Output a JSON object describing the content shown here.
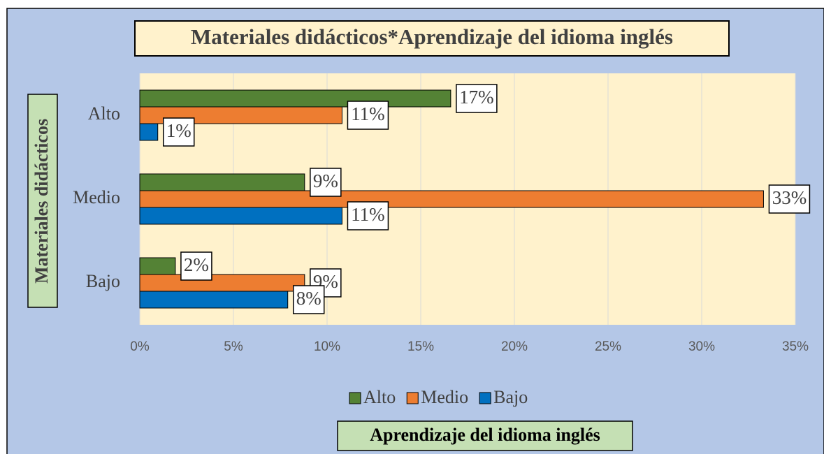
{
  "chart_data": {
    "type": "bar",
    "orientation": "horizontal",
    "title": "Materiales didácticos*Aprendizaje del idioma inglés",
    "y_axis_label": "Materiales didácticos",
    "x_axis_label": "Aprendizaje del idioma inglés",
    "categories": [
      "Alto",
      "Medio",
      "Bajo"
    ],
    "series": [
      {
        "name": "Alto",
        "color": "#548235",
        "values": [
          16.6,
          8.8,
          1.9
        ],
        "value_labels": [
          "17%",
          "9%",
          "2%"
        ]
      },
      {
        "name": "Medio",
        "color": "#ed7d31",
        "values": [
          10.8,
          33.3,
          8.8
        ],
        "value_labels": [
          "11%",
          "33%",
          "9%"
        ]
      },
      {
        "name": "Bajo",
        "color": "#0070c0",
        "values": [
          0.96,
          10.8,
          7.9
        ],
        "value_labels": [
          "1%",
          "11%",
          "8%"
        ]
      }
    ],
    "xlim": [
      0,
      35
    ],
    "xticks": [
      {
        "value": 0,
        "label": "0%"
      },
      {
        "value": 5,
        "label": "5%"
      },
      {
        "value": 10,
        "label": "10%"
      },
      {
        "value": 15,
        "label": "15%"
      },
      {
        "value": 20,
        "label": "20%"
      },
      {
        "value": 25,
        "label": "25%"
      },
      {
        "value": 30,
        "label": "30%"
      },
      {
        "value": 35,
        "label": "35%"
      }
    ],
    "grid": true,
    "legend": "bottom"
  }
}
